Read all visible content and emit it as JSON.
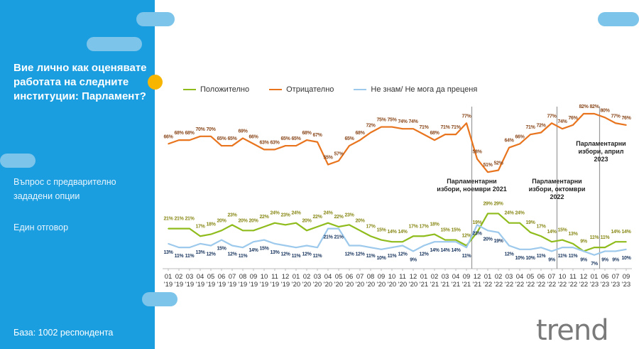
{
  "left_panel": {
    "question": "Вие лично как оценявате работата на следните институции: Парламент?",
    "question_type": "Въпрос с предварително зададени опции",
    "answer_type": "Един отговор",
    "base": "База:  1002 респондента"
  },
  "logo": "trend",
  "colors": {
    "panel": "#1a9ee0",
    "positive": "#8fbc1c",
    "negative": "#e8741e",
    "dontknow": "#9cc9ec",
    "accent": "#f7b500"
  },
  "chart_data": {
    "type": "line",
    "title": "",
    "xlabel": "",
    "ylabel": "",
    "legend_position": "top",
    "grid": false,
    "categories": [
      [
        "01",
        "'19"
      ],
      [
        "02",
        "'19"
      ],
      [
        "03",
        "'19"
      ],
      [
        "04",
        "'19"
      ],
      [
        "05",
        "'19"
      ],
      [
        "06",
        "'19"
      ],
      [
        "07",
        "'19"
      ],
      [
        "08",
        "'19"
      ],
      [
        "09",
        "'19"
      ],
      [
        "10",
        "'19"
      ],
      [
        "11",
        "'19"
      ],
      [
        "12",
        "'19"
      ],
      [
        "01",
        "'20"
      ],
      [
        "02",
        "'20"
      ],
      [
        "03",
        "'20"
      ],
      [
        "04",
        "'20"
      ],
      [
        "05",
        "'20"
      ],
      [
        "06",
        "'20"
      ],
      [
        "07",
        "'20"
      ],
      [
        "08",
        "'20"
      ],
      [
        "09",
        "'20"
      ],
      [
        "10",
        "'20"
      ],
      [
        "11",
        "'20"
      ],
      [
        "12",
        "'20"
      ],
      [
        "01",
        "'21"
      ],
      [
        "02",
        "'21"
      ],
      [
        "03",
        "'21"
      ],
      [
        "04",
        "'21"
      ],
      [
        "09",
        "'21"
      ],
      [
        "12",
        "'21"
      ],
      [
        "01",
        "'22"
      ],
      [
        "02",
        "'22"
      ],
      [
        "03",
        "'22"
      ],
      [
        "04",
        "'22"
      ],
      [
        "05",
        "'22"
      ],
      [
        "06",
        "'22"
      ],
      [
        "07",
        "'22"
      ],
      [
        "10",
        "'22"
      ],
      [
        "11",
        "'22"
      ],
      [
        "12",
        "'22"
      ],
      [
        "01",
        "'23"
      ],
      [
        "06",
        "'23"
      ],
      [
        "07",
        "'23"
      ],
      [
        "09",
        "'23"
      ]
    ],
    "series": [
      {
        "name": "Положително",
        "color": "#8fbc1c",
        "label_color": "#8a8a1a",
        "values": [
          21,
          21,
          21,
          17,
          18,
          20,
          23,
          20,
          20,
          22,
          24,
          23,
          24,
          20,
          22,
          24,
          22,
          23,
          20,
          17,
          15,
          14,
          14,
          17,
          17,
          18,
          15,
          15,
          12,
          19,
          29,
          29,
          24,
          24,
          19,
          17,
          14,
          15,
          13,
          9,
          11,
          11,
          14,
          14
        ]
      },
      {
        "name": "Отрицателно",
        "color": "#e8741e",
        "label_color": "#8b4a1e",
        "values": [
          66,
          68,
          68,
          70,
          70,
          65,
          65,
          69,
          66,
          63,
          63,
          65,
          65,
          68,
          67,
          55,
          57,
          65,
          68,
          72,
          75,
          75,
          74,
          74,
          71,
          68,
          71,
          71,
          77,
          58,
          51,
          52,
          64,
          66,
          71,
          72,
          77,
          74,
          76,
          82,
          82,
          80,
          77,
          76
        ]
      },
      {
        "name": "Не знам/ Не мога да преценя",
        "color": "#9cc9ec",
        "label_color": "#1f3b63",
        "values": [
          13,
          11,
          11,
          13,
          12,
          15,
          12,
          11,
          14,
          15,
          13,
          12,
          11,
          12,
          11,
          21,
          21,
          12,
          12,
          11,
          10,
          11,
          12,
          9,
          12,
          14,
          14,
          14,
          11,
          23,
          20,
          19,
          12,
          10,
          10,
          11,
          9,
          11,
          11,
          9,
          7,
          9,
          9,
          10
        ]
      }
    ],
    "value_suffix": "%",
    "annotations": [
      {
        "after_category": "09 '21",
        "text": [
          "Парламентарни",
          "избори, ноември 2021"
        ]
      },
      {
        "after_category": "07 '22",
        "text": [
          "Парламентарни",
          "избори, октомври",
          "2022"
        ]
      },
      {
        "after_category": "01 '23",
        "text": [
          "Парламентарни",
          "избори, април",
          "2023"
        ]
      }
    ]
  }
}
